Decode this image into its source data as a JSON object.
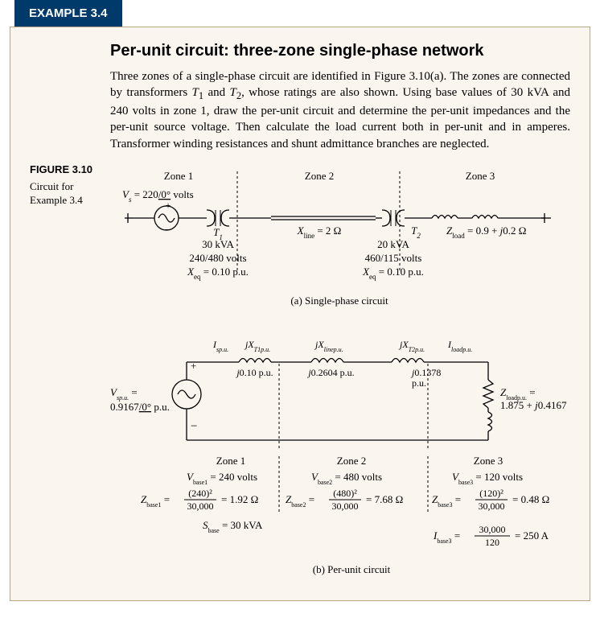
{
  "example_tab": "EXAMPLE 3.4",
  "title": "Per-unit circuit: three-zone single-phase network",
  "intro_html": "Three zones of a single-phase circuit are identified in Figure 3.10(a). The zones are connected by transformers <i>T</i><sub>1</sub> and <i>T</i><sub>2</sub>, whose ratings are also shown. Using base values of 30 kVA and 240 volts in zone 1, draw the per-unit circuit and determine the per-unit impedances and the per-unit source voltage. Then calculate the load current both in per-unit and in amperes. Transformer winding resistances and shunt admittance branches are neglected.",
  "figure": {
    "number": "FIGURE 3.10",
    "caption": "Circuit for Example 3.4"
  },
  "colors": {
    "tab_bg": "#003a6a",
    "tab_fg": "#ffffff",
    "box_bg": "#faf6ef",
    "box_border": "#b5a88a",
    "stroke": "#000000"
  },
  "diagram_a": {
    "zones": [
      "Zone 1",
      "Zone 2",
      "Zone 3"
    ],
    "source_label": "V_s  =  220/0° volts",
    "xline_label": "X_line  =  2 Ω",
    "zload_label": "Z_load  =  0.9 + j0.2 Ω",
    "t1": {
      "name": "T_1",
      "kva": "30 kVA",
      "volts": "240/480 volts",
      "xeq": "X_eq  =  0.10 p.u."
    },
    "t2": {
      "name": "T_2",
      "kva": "20 kVA",
      "volts": "460/115 volts",
      "xeq": "X_eq  =  0.10 p.u."
    },
    "caption": "(a)  Single-phase circuit"
  },
  "diagram_b": {
    "top_labels": [
      "I_sp.u.",
      "jX_T1p.u.",
      "jX_linep.u.",
      "jX_T2p.u.",
      "I_loadp.u."
    ],
    "coil_values": [
      "j0.10 p.u.",
      "j0.2604 p.u.",
      "j0.1378 p.u."
    ],
    "vsource": "V_sp.u.  =",
    "vsource_val": "0.9167/0° p.u.",
    "zload": "Z_loadp.u. =",
    "zload_val": "1.875 + j0.4167 p.u.",
    "zones": [
      "Zone 1",
      "Zone 2",
      "Zone 3"
    ],
    "vbase": [
      "V_base1  =  240 volts",
      "V_base2  =  480 volts",
      "V_base3  =  120 volts"
    ],
    "zbase": [
      {
        "lhs": "Z_base1  =",
        "num": "(240)²",
        "den": "30,000",
        "rhs": "=  1.92 Ω"
      },
      {
        "lhs": "Z_base2  =",
        "num": "(480)²",
        "den": "30,000",
        "rhs": "=  7.68 Ω"
      },
      {
        "lhs": "Z_base3  =",
        "num": "(120)²",
        "den": "30,000",
        "rhs": "=  0.48 Ω"
      }
    ],
    "sbase": "S_base  =  30 kVA",
    "ibase": {
      "lhs": "I_base3  =",
      "num": "30,000",
      "den": "120",
      "rhs": "=  250 A"
    },
    "caption": "(b)  Per-unit circuit"
  }
}
